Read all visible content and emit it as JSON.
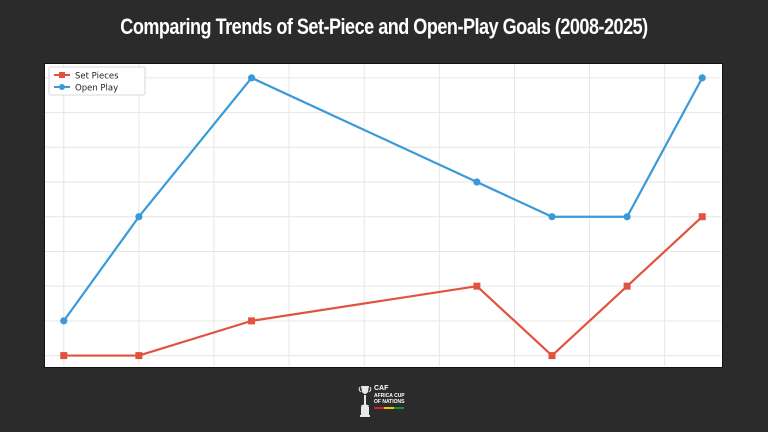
{
  "header": {
    "title": "Comparing Trends of Set-Piece and Open-Play Goals (2008-2025)"
  },
  "logo": {
    "lines": [
      "CAF",
      "AFRICA CUP",
      "OF NATIONS"
    ],
    "icon": "trophy-icon"
  },
  "chart_data": {
    "type": "line",
    "title": "Comparing Trends of Set-Piece and Open-Play Goals (2008-2025)",
    "xlabel": "",
    "ylabel": "",
    "x": [
      1,
      2,
      3.5,
      6.5,
      7.5,
      8.5,
      9.5
    ],
    "xlim": [
      0.75,
      9.75
    ],
    "ylim": [
      0.7,
      9.4
    ],
    "grid": true,
    "legend_position": "top-left",
    "series": [
      {
        "name": "Set Pieces",
        "values": [
          1,
          1,
          2,
          3,
          1,
          3,
          5
        ],
        "color": "#e2533f",
        "marker": "square"
      },
      {
        "name": "Open Play",
        "values": [
          2,
          5,
          9,
          6,
          5,
          5,
          9
        ],
        "color": "#3a9ad9",
        "marker": "circle"
      }
    ]
  }
}
